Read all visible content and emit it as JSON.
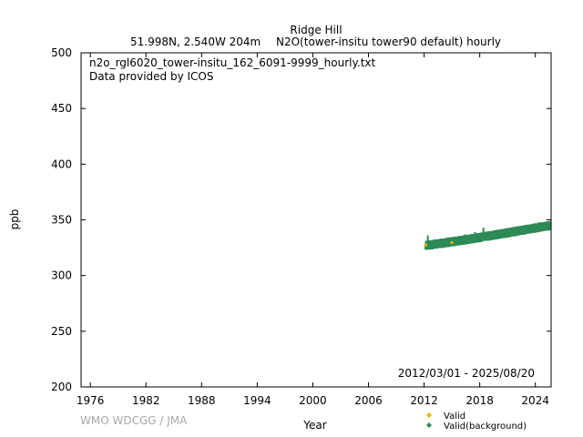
{
  "chart_data": {
    "type": "scatter",
    "title": "Ridge Hill",
    "subtitle_left": "51.998N, 2.540W 204m",
    "subtitle_right": "N2O(tower-insitu tower90 default) hourly",
    "annotations": [
      "n2o_rgl6020_tower-insitu_162_6091-9999_hourly.txt",
      "Data provided by ICOS"
    ],
    "date_range": "2012/03/01 - 2025/08/20",
    "xlabel": "Year",
    "ylabel": "ppb",
    "xlim": [
      1975,
      2025.7
    ],
    "ylim": [
      200,
      500
    ],
    "x_ticks": [
      1976,
      1982,
      1988,
      1994,
      2000,
      2006,
      2012,
      2018,
      2024
    ],
    "y_ticks": [
      200,
      250,
      300,
      350,
      400,
      450,
      500
    ],
    "grid": false,
    "legend_position": "bottom-right",
    "series": [
      {
        "name": "Valid",
        "color": "#e6b800",
        "points": [
          [
            2012.2,
            327.5
          ],
          [
            2015.0,
            329.6
          ]
        ]
      },
      {
        "name": "Valid(background)",
        "color": "#2e8b57",
        "points": [
          [
            2012.2,
            326.0
          ],
          [
            2012.7,
            326.6
          ],
          [
            2013.2,
            327.2
          ],
          [
            2013.7,
            327.8
          ],
          [
            2014.2,
            328.4
          ],
          [
            2014.7,
            329.0
          ],
          [
            2015.2,
            329.6
          ],
          [
            2015.7,
            330.2
          ],
          [
            2016.2,
            330.8
          ],
          [
            2016.7,
            331.5
          ],
          [
            2017.2,
            332.1
          ],
          [
            2017.7,
            332.8
          ],
          [
            2018.2,
            333.5
          ],
          [
            2018.7,
            334.2
          ],
          [
            2019.2,
            334.9
          ],
          [
            2019.7,
            335.6
          ],
          [
            2020.2,
            336.3
          ],
          [
            2020.7,
            337.0
          ],
          [
            2021.2,
            337.7
          ],
          [
            2021.7,
            338.4
          ],
          [
            2022.2,
            339.1
          ],
          [
            2022.7,
            339.8
          ],
          [
            2023.2,
            340.6
          ],
          [
            2023.7,
            341.3
          ],
          [
            2024.2,
            342.0
          ],
          [
            2024.7,
            342.7
          ],
          [
            2025.2,
            343.3
          ],
          [
            2025.6,
            343.8
          ]
        ],
        "spikes": [
          [
            2012.4,
            336
          ],
          [
            2014.5,
            334
          ],
          [
            2016.4,
            337
          ],
          [
            2017.5,
            339
          ],
          [
            2018.4,
            343
          ],
          [
            2019.5,
            338
          ],
          [
            2021.0,
            340
          ],
          [
            2023.0,
            344
          ],
          [
            2024.4,
            348
          ],
          [
            2025.3,
            346
          ]
        ]
      }
    ]
  },
  "footer": {
    "credit": "WMO WDCGG / JMA"
  }
}
